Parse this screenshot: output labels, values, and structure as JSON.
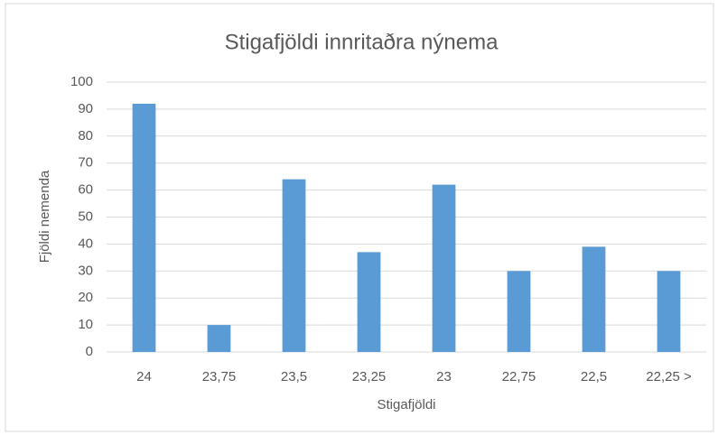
{
  "chart_data": {
    "type": "bar",
    "title": "Stigafjöldi innritaðra nýnema",
    "x_label": "Stigafjöldi",
    "y_label": "Fjöldi nemenda",
    "categories": [
      "24",
      "23,75",
      "23,5",
      "23,25",
      "23",
      "22,75",
      "22,5",
      "22,25 >"
    ],
    "values": [
      92,
      10,
      64,
      37,
      62,
      30,
      39,
      30
    ],
    "color": "#5b9bd5",
    "ylim": [
      0,
      100
    ],
    "yticks": [
      0,
      10,
      20,
      30,
      40,
      50,
      60,
      70,
      80,
      90,
      100
    ],
    "grid": true
  }
}
